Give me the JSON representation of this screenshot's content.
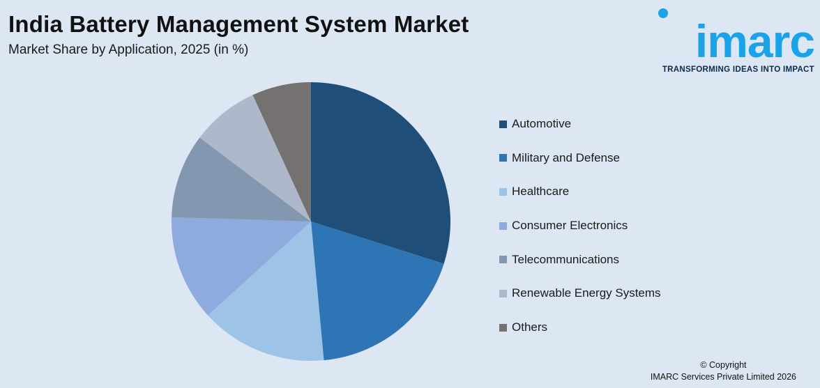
{
  "header": {
    "title": "India Battery Management System Market",
    "subtitle": "Market Share by Application, 2025 (in %)"
  },
  "logo": {
    "wordmark": "imarc",
    "tagline": "TRANSFORMING IDEAS INTO IMPACT",
    "color": "#1aa3e8"
  },
  "footer": {
    "copyright": "© Copyright",
    "company": "IMARC Services Private Limited 2026"
  },
  "chart_data": {
    "type": "pie",
    "title": "India Battery Management System Market",
    "subtitle": "Market Share by Application, 2025 (in %)",
    "legend_position": "right",
    "categories": [
      "Automotive",
      "Military and Defense",
      "Healthcare",
      "Consumer Electronics",
      "Telecommunications",
      "Renewable Energy Systems",
      "Others"
    ],
    "values": [
      30.5,
      19.0,
      15.0,
      12.5,
      10.0,
      8.0,
      7.0
    ],
    "colors": [
      "#1f4e79",
      "#2e75b6",
      "#9dc3e6",
      "#8faadc",
      "#8497b0",
      "#adb9ca",
      "#767171"
    ]
  }
}
